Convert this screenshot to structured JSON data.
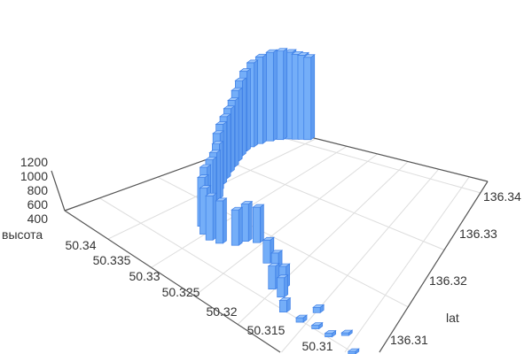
{
  "chart_data": {
    "type": "bar3d",
    "title": "",
    "axes": {
      "x": {
        "name": "",
        "ticks": [
          "50.34",
          "50.335",
          "50.33",
          "50.325",
          "50.32",
          "50.315",
          "50.31"
        ],
        "range": [
          50.307,
          50.34
        ]
      },
      "y": {
        "name": "lat",
        "ticks": [
          "136.34",
          "136.33",
          "136.32",
          "136.31"
        ],
        "range": [
          136.304,
          136.342
        ]
      },
      "z": {
        "name": "высота",
        "ticks": [
          "1200",
          "1000",
          "800",
          "600",
          "400"
        ],
        "range": [
          300,
          1200
        ]
      }
    },
    "grid": true,
    "colors": {
      "bar_fill": "#74aef8",
      "bar_stroke": "#3d7fe6",
      "grid": "#dddddd",
      "axis": "#555555"
    },
    "points": [
      [
        50.3093,
        136.3097,
        330
      ],
      [
        50.311,
        136.3116,
        330
      ],
      [
        50.3123,
        136.3101,
        340
      ],
      [
        50.3139,
        136.3101,
        340
      ],
      [
        50.3156,
        136.3097,
        350
      ],
      [
        50.3149,
        136.3124,
        360
      ],
      [
        50.3176,
        136.3097,
        430
      ],
      [
        50.3189,
        136.3116,
        520
      ],
      [
        50.3195,
        136.3131,
        540
      ],
      [
        50.3202,
        136.312,
        560
      ],
      [
        50.3209,
        136.3139,
        580
      ],
      [
        50.3228,
        136.3154,
        560
      ],
      [
        50.3255,
        136.3177,
        700
      ],
      [
        50.3265,
        136.3169,
        720
      ],
      [
        50.3268,
        136.3154,
        700
      ],
      [
        50.3281,
        136.3143,
        780
      ],
      [
        50.3291,
        136.3139,
        800
      ],
      [
        50.3301,
        136.3143,
        820
      ],
      [
        50.3311,
        136.3154,
        850
      ],
      [
        50.3318,
        136.3169,
        880
      ],
      [
        50.3321,
        136.3184,
        900
      ],
      [
        50.3327,
        136.32,
        900
      ],
      [
        50.3334,
        136.3215,
        920
      ],
      [
        50.3344,
        136.323,
        950
      ],
      [
        50.3351,
        136.3245,
        980
      ],
      [
        50.3357,
        136.326,
        1000
      ],
      [
        50.3364,
        136.3276,
        1020
      ],
      [
        50.337,
        136.3291,
        1050
      ],
      [
        50.3377,
        136.3306,
        1100
      ],
      [
        50.3384,
        136.3321,
        1150
      ],
      [
        50.339,
        136.3336,
        1200
      ],
      [
        50.3393,
        136.3352,
        1250
      ],
      [
        50.3393,
        136.3367,
        1280
      ],
      [
        50.339,
        136.3382,
        1300
      ],
      [
        50.3384,
        136.3393,
        1300
      ],
      [
        50.3377,
        136.3401,
        1280
      ],
      [
        50.337,
        136.3405,
        1260
      ],
      [
        50.3364,
        136.3409,
        1250
      ],
      [
        50.3357,
        136.3412,
        1230
      ]
    ]
  }
}
